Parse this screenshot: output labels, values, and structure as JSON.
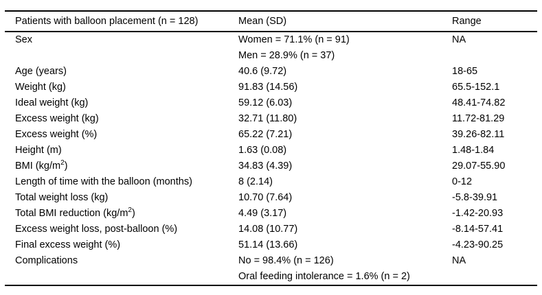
{
  "table": {
    "header": {
      "parameter": "Patients with balloon placement (n = 128)",
      "mean": "Mean (SD)",
      "range": "Range"
    },
    "rows": [
      {
        "label": "Sex",
        "label_sup": "",
        "label_end": "",
        "mean": "Women = 71.1% (n = 91)",
        "range": "NA"
      },
      {
        "label": "",
        "label_sup": "",
        "label_end": "",
        "mean": "Men = 28.9% (n = 37)",
        "range": ""
      },
      {
        "label": "Age (years)",
        "label_sup": "",
        "label_end": "",
        "mean": "40.6 (9.72)",
        "range": "18-65"
      },
      {
        "label": "Weight (kg)",
        "label_sup": "",
        "label_end": "",
        "mean": "91.83 (14.56)",
        "range": "65.5-152.1"
      },
      {
        "label": "Ideal weight (kg)",
        "label_sup": "",
        "label_end": "",
        "mean": "59.12 (6.03)",
        "range": "48.41-74.82"
      },
      {
        "label": "Excess weight (kg)",
        "label_sup": "",
        "label_end": "",
        "mean": "32.71 (11.80)",
        "range": "11.72-81.29"
      },
      {
        "label": "Excess weight (%)",
        "label_sup": "",
        "label_end": "",
        "mean": "65.22 (7.21)",
        "range": "39.26-82.11"
      },
      {
        "label": "Height (m)",
        "label_sup": "",
        "label_end": "",
        "mean": "1.63 (0.08)",
        "range": "1.48-1.84"
      },
      {
        "label": "BMI (kg/m",
        "label_sup": "2",
        "label_end": ")",
        "mean": "34.83 (4.39)",
        "range": "29.07-55.90"
      },
      {
        "label": "Length of time with the balloon (months)",
        "label_sup": "",
        "label_end": "",
        "mean": "8 (2.14)",
        "range": "0-12"
      },
      {
        "label": "Total weight loss (kg)",
        "label_sup": "",
        "label_end": "",
        "mean": "10.70 (7.64)",
        "range": "-5.8-39.91"
      },
      {
        "label": "Total BMI reduction (kg/m",
        "label_sup": "2",
        "label_end": ")",
        "mean": "4.49 (3.17)",
        "range": "-1.42-20.93"
      },
      {
        "label": "Excess weight loss, post-balloon (%)",
        "label_sup": "",
        "label_end": "",
        "mean": "14.08 (10.77)",
        "range": "-8.14-57.41"
      },
      {
        "label": "Final excess weight (%)",
        "label_sup": "",
        "label_end": "",
        "mean": "51.14 (13.66)",
        "range": "-4.23-90.25"
      },
      {
        "label": "Complications",
        "label_sup": "",
        "label_end": "",
        "mean": "No = 98.4% (n = 126)",
        "range": "NA"
      },
      {
        "label": "",
        "label_sup": "",
        "label_end": "",
        "mean": "Oral feeding intolerance = 1.6% (n = 2)",
        "range": ""
      }
    ]
  }
}
